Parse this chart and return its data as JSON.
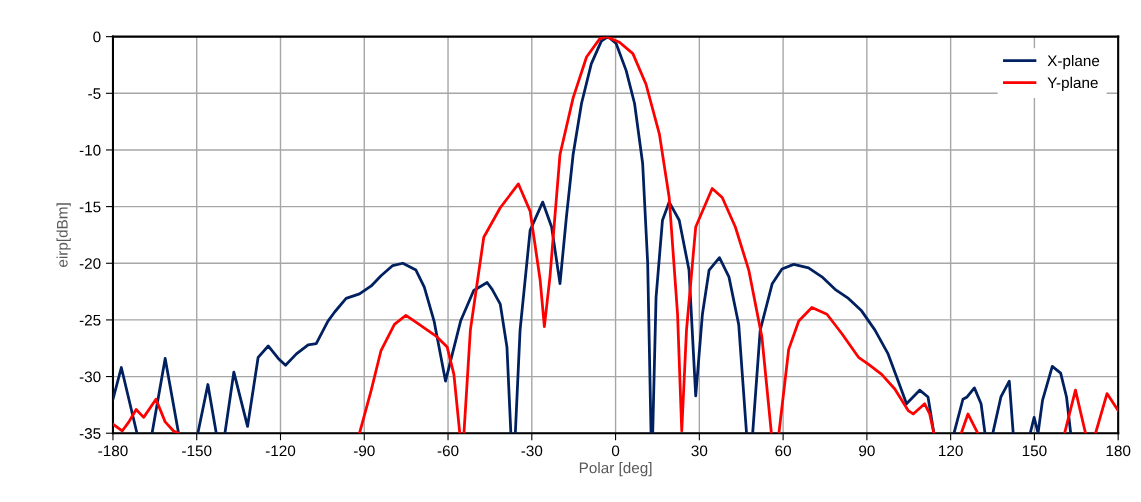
{
  "chart_data": {
    "type": "line",
    "xlabel": "Polar [deg]",
    "ylabel": "eirp[dBm]",
    "xlim": [
      -180,
      180
    ],
    "xticks": [
      -180,
      -150,
      -120,
      -90,
      -60,
      -30,
      0,
      30,
      60,
      90,
      120,
      150,
      180
    ],
    "ylim": [
      -35,
      0
    ],
    "yticks": [
      -35,
      -30,
      -25,
      -20,
      -15,
      -10,
      -5,
      0
    ],
    "grid": true,
    "legend": "top right",
    "marker": "none",
    "line_style": "solid",
    "series": [
      {
        "name": "X-plane",
        "color": "#002060",
        "x": [
          -180,
          -177,
          -171.4,
          -168,
          -166,
          -161.3,
          -156.5,
          -153,
          -149.6,
          -146,
          -143,
          -141.5,
          -139.9,
          -136.7,
          -131.8,
          -128,
          -124.4,
          -120.8,
          -118.2,
          -114.3,
          -110.1,
          -107.2,
          -103,
          -100.6,
          -96.5,
          -91.7,
          -87.5,
          -84,
          -79.8,
          -76.2,
          -71.5,
          -68.5,
          -65,
          -60.9,
          -55.5,
          -50.8,
          -46,
          -44.2,
          -41.3,
          -38.9,
          -37.5,
          -36.7,
          -35.9,
          -34.2,
          -30.6,
          -26.1,
          -22.9,
          -19.9,
          -17.6,
          -15.2,
          -12.2,
          -8.7,
          -5.1,
          -2.7,
          0.2,
          3.8,
          6.8,
          9.7,
          11.5,
          12.7,
          13,
          13.3,
          14.5,
          16.8,
          19.2,
          22.8,
          26.3,
          28.7,
          31.1,
          33.5,
          37.2,
          40.6,
          44.1,
          46.9,
          48,
          49.1,
          51.8,
          56.1,
          59.6,
          63.8,
          69.1,
          73.9,
          78.6,
          83.4,
          88.1,
          92.9,
          97.6,
          101.2,
          104.2,
          108.9,
          111.9,
          114,
          118,
          121.2,
          124.4,
          125.9,
          128.5,
          130.9,
          132.3,
          134,
          135.1,
          138,
          141,
          142.4,
          145,
          148.5,
          149.9,
          151.3,
          152.9,
          156.4,
          159.4,
          161.5,
          163
        ],
        "values": [
          -32,
          -29.2,
          -35,
          null,
          -35,
          -28.4,
          -35,
          null,
          -35,
          -30.7,
          -35,
          null,
          -35,
          -29.6,
          -34.4,
          -28.3,
          -27.3,
          -28.4,
          -29.0,
          -28.0,
          -27.2,
          -27.1,
          -25.1,
          -24.3,
          -23.1,
          -22.7,
          -22.0,
          -21.1,
          -20.2,
          -20,
          -20.6,
          -22.1,
          -25.1,
          -30.4,
          -25.1,
          -22.4,
          -21.7,
          -22.3,
          -23.6,
          -27.4,
          -35,
          null,
          -35,
          -25.9,
          -17.1,
          -14.6,
          -16.8,
          -21.8,
          -15.9,
          -10.4,
          -5.9,
          -2.4,
          -0.4,
          0,
          -0.6,
          -3,
          -5.9,
          -11.2,
          -20,
          -35,
          null,
          -35,
          -23,
          -16.2,
          -14.6,
          -16.2,
          -20.6,
          -31.7,
          -24.5,
          -20.6,
          -19.5,
          -21.2,
          -25.4,
          -35,
          null,
          -35,
          -25.9,
          -21.8,
          -20.5,
          -20.1,
          -20.4,
          -21.2,
          -22.3,
          -23.1,
          -24.2,
          -25.9,
          -28,
          -30.4,
          -32.4,
          -31.2,
          -31.8,
          -35,
          null,
          -35,
          -32,
          -31.8,
          -31,
          -32.4,
          -35,
          null,
          -35,
          -31.8,
          -30.4,
          -35,
          null,
          -35,
          -33.6,
          -35,
          -32.1,
          -29.1,
          -29.7,
          -31.8,
          -35
        ]
      },
      {
        "name": "Y-plane",
        "color": "#ff0000",
        "x": [
          -180,
          -176.7,
          -174.3,
          -171.7,
          -169,
          -164.6,
          -161.3,
          -158.3,
          -156.5,
          -120,
          -91.7,
          -87.5,
          -84,
          -79.2,
          -75.1,
          -71.5,
          -67.4,
          -64.4,
          -60.3,
          -57.9,
          -55.8,
          -55,
          -54.3,
          -52,
          -47.2,
          -41.3,
          -34.8,
          -30.6,
          -27,
          -25.5,
          -23.5,
          -19.9,
          -15.2,
          -10.4,
          -5.7,
          -3.3,
          1.4,
          6.2,
          10.9,
          15.7,
          19.2,
          22.2,
          23.7,
          25.4,
          28.7,
          34.6,
          38.2,
          42.9,
          47.7,
          52.4,
          55.8,
          57,
          58.5,
          62,
          65.6,
          70.3,
          75.7,
          81,
          87,
          90.5,
          95.3,
          100,
          104.8,
          106.6,
          110.7,
          112.5,
          114,
          119,
          123.8,
          126.2,
          129.7,
          145,
          160.8,
          164.7,
          168.3,
          170,
          171.9,
          176,
          180
        ],
        "values": [
          -34.2,
          -34.8,
          -34,
          -32.9,
          -33.6,
          -32,
          -34,
          -34.8,
          -35,
          null,
          -35,
          -31.2,
          -27.7,
          -25.4,
          -24.6,
          -25.2,
          -25.9,
          -26.4,
          -27.4,
          -29.8,
          -35,
          null,
          -35,
          -25.9,
          -17.7,
          -15.1,
          -13,
          -15.4,
          -21.5,
          -25.6,
          -21.2,
          -10.4,
          -5.4,
          -1.8,
          -0.2,
          0,
          -0.5,
          -1.5,
          -4.2,
          -8.6,
          -14.2,
          -24.5,
          -34.8,
          -25.9,
          -16.8,
          -13.4,
          -14.2,
          -16.8,
          -20.6,
          -26.5,
          -35,
          null,
          -35,
          -27.6,
          -25.1,
          -23.9,
          -24.5,
          -26.2,
          -28.3,
          -28.9,
          -29.8,
          -31.1,
          -33,
          -33.3,
          -32.4,
          -33.3,
          -35,
          null,
          -35,
          -33.3,
          -35,
          null,
          -35,
          -31.2,
          -35,
          null,
          -35,
          -31.5,
          -33
        ]
      }
    ]
  }
}
